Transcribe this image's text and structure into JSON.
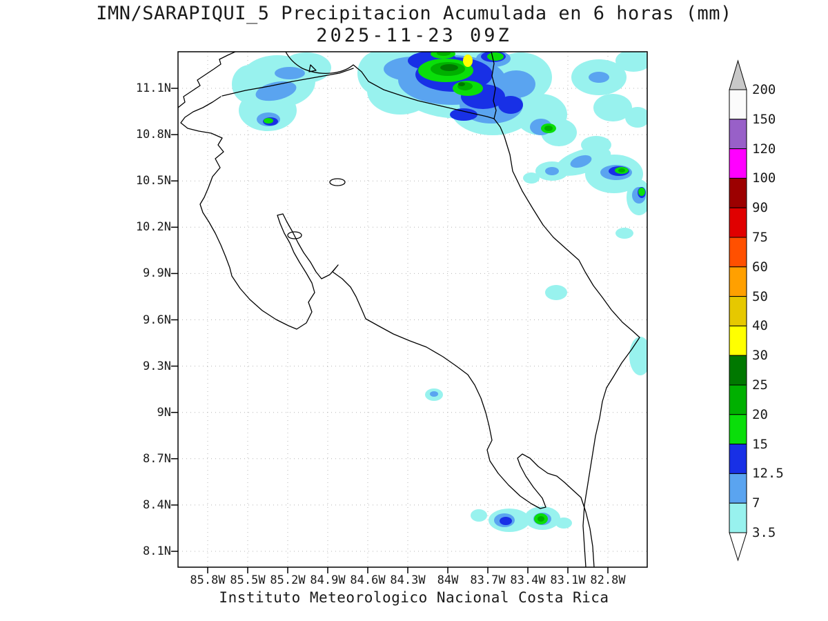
{
  "title": {
    "line1": "IMN/SARAPIQUI_5 Precipitacion Acumulada en 6 horas (mm)",
    "line2": "2025-11-23 09Z"
  },
  "footer": "Instituto Meteorologico Nacional Costa Rica",
  "map": {
    "lat_ticks": [
      "11.1N",
      "10.8N",
      "10.5N",
      "10.2N",
      "9.9N",
      "9.6N",
      "9.3N",
      "9N",
      "8.7N",
      "8.4N",
      "8.1N"
    ],
    "lon_ticks": [
      "85.8W",
      "85.5W",
      "85.2W",
      "84.9W",
      "84.6W",
      "84.3W",
      "84W",
      "83.7W",
      "83.4W",
      "83.1W",
      "82.8W"
    ]
  },
  "colorbar": {
    "labels": [
      "200",
      "150",
      "120",
      "100",
      "90",
      "75",
      "60",
      "50",
      "40",
      "30",
      "25",
      "20",
      "15",
      "12.5",
      "7",
      "3.5"
    ],
    "over_color": "#c8c8c8",
    "under_color": "#ffffff",
    "segment_colors_top_to_bottom": [
      "#fbfbfb",
      "#9860c8",
      "#ff00ff",
      "#9c0000",
      "#e00000",
      "#ff5000",
      "#ffa000",
      "#e6c800",
      "#ffff00",
      "#007800",
      "#00b000",
      "#0ade0a",
      "#1830e6",
      "#5aa4f0",
      "#98f2ee"
    ]
  },
  "palette": {
    "cyan": "#98f2ee",
    "light_blue": "#5aa4f0",
    "blue": "#1830e6",
    "green_bright": "#0ade0a",
    "green": "#00b000",
    "green_dark": "#007800",
    "yellow": "#ffff00"
  },
  "precipitation_summary": {
    "unit": "mm per 6 h",
    "areas": [
      {
        "area": "Northern Caribbean / Nicaragua border (83.5-84.5W, 10.9-11.3N)",
        "max_level": "40-50"
      },
      {
        "area": "Northwest Guanacaste coast (85.2-85.6W, 10.8-11.2N)",
        "max_level": "15-20"
      },
      {
        "area": "Caribbean foothills (82.8-83.4W, 10.3-10.7N)",
        "max_level": "20-25"
      },
      {
        "area": "South Caribbean border strip (82.6W, 9.2-9.5N)",
        "max_level": "3.5-7"
      },
      {
        "area": "Southern Pacific coast (83.3-83.8W, 8.3N)",
        "max_level": "20-25"
      },
      {
        "area": "Isolated cell near 84.1W, 9.1N",
        "max_level": "7-12.5"
      }
    ]
  }
}
